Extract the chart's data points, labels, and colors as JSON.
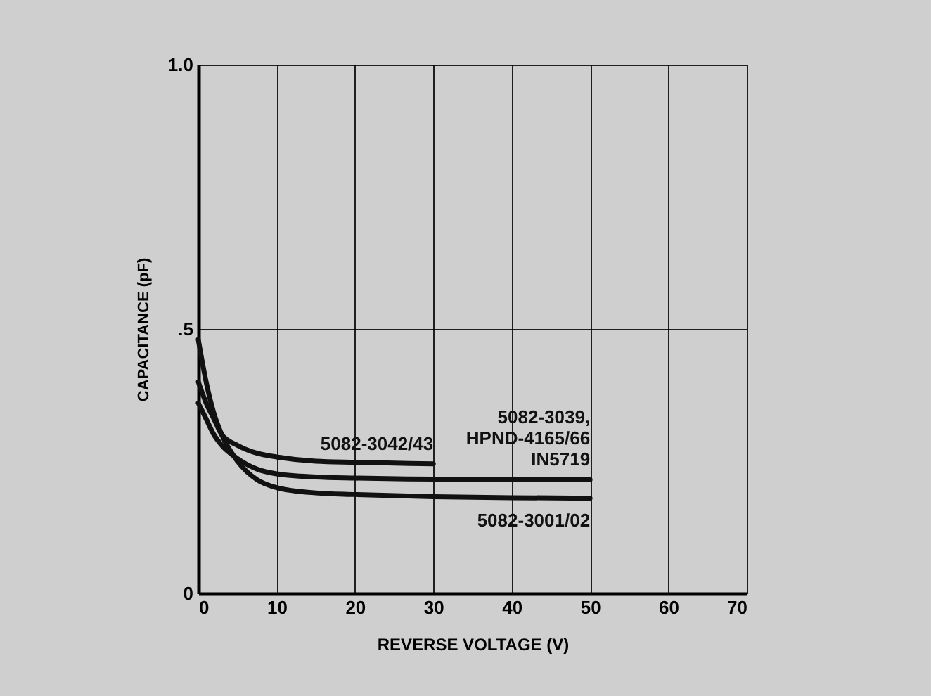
{
  "chart_data": {
    "type": "line",
    "xlabel": "REVERSE VOLTAGE (V)",
    "ylabel": "CAPACITANCE (pF)",
    "xlim": [
      0,
      70
    ],
    "ylim": [
      0,
      1
    ],
    "xticks": [
      0,
      10,
      20,
      30,
      40,
      50,
      60,
      70
    ],
    "yticks": [
      0,
      {
        "value": 0.5,
        "label": ".5"
      },
      {
        "value": 1,
        "label": "1.0"
      }
    ],
    "grid": true,
    "legend": false,
    "marker": "none",
    "line_style": "solid",
    "series": [
      {
        "name": "5082-3042/43",
        "color": "#111111",
        "x": [
          0,
          1,
          2,
          3,
          5,
          7.5,
          10,
          15,
          20,
          30
        ],
        "values": [
          0.4,
          0.36,
          0.33,
          0.3,
          0.28,
          0.265,
          0.258,
          0.25,
          0.248,
          0.245
        ]
      },
      {
        "name": "5082-3039,\nHPND-4165/66\nIN5719",
        "color": "#111111",
        "x": [
          0,
          1,
          2,
          3,
          5,
          7.5,
          10,
          15,
          20,
          30,
          40,
          50
        ],
        "values": [
          0.36,
          0.33,
          0.3,
          0.28,
          0.255,
          0.235,
          0.226,
          0.22,
          0.218,
          0.216,
          0.215,
          0.215
        ]
      },
      {
        "name": "5082-3001/02",
        "color": "#111111",
        "x": [
          0,
          1,
          2,
          3,
          5,
          7.5,
          10,
          15,
          20,
          30,
          40,
          50
        ],
        "values": [
          0.48,
          0.4,
          0.34,
          0.3,
          0.25,
          0.215,
          0.2,
          0.19,
          0.187,
          0.183,
          0.181,
          0.18
        ]
      }
    ]
  }
}
